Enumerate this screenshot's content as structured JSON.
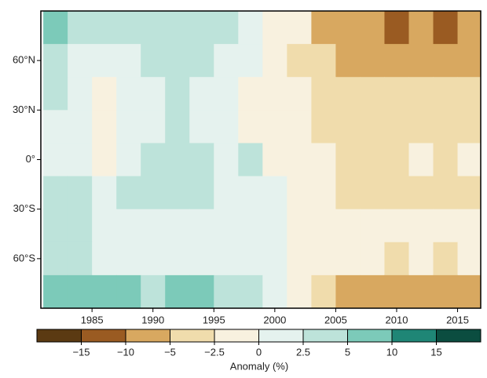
{
  "chart_data": {
    "type": "heatmap",
    "x": [
      1982,
      1984,
      1986,
      1988,
      1990,
      1992,
      1994,
      1996,
      1998,
      2000,
      2002,
      2004,
      2006,
      2008,
      2010,
      2012,
      2014,
      2016
    ],
    "y": [
      80,
      60,
      40,
      20,
      0,
      -20,
      -40,
      -60,
      -80
    ],
    "z": [
      [
        8,
        5,
        4,
        3,
        4,
        5,
        4,
        3,
        2,
        0,
        -2,
        -5,
        -8,
        -8,
        -10,
        -8,
        -10,
        -8
      ],
      [
        4,
        2,
        1,
        2,
        3,
        4,
        3,
        2,
        1,
        -1,
        -3,
        -4,
        -5,
        -5,
        -6,
        -5,
        -6,
        -5
      ],
      [
        3,
        1,
        0,
        1,
        2,
        3,
        2,
        1,
        0,
        -1,
        -2,
        -3,
        -4,
        -4,
        -4,
        -3,
        -4,
        -3
      ],
      [
        2,
        1,
        -1,
        1,
        2,
        3,
        2,
        1,
        0,
        -1,
        -2,
        -3,
        -3,
        -3,
        -3,
        -3,
        -3,
        -3
      ],
      [
        2,
        2,
        0,
        2,
        3,
        4,
        3,
        2,
        5,
        -1,
        -2,
        -2,
        -3,
        -3,
        -3,
        -2,
        -3,
        -2
      ],
      [
        3,
        3,
        2,
        3,
        3,
        4,
        3,
        2,
        2,
        1,
        -2,
        -2,
        -3,
        -3,
        -3,
        -3,
        -3,
        -3
      ],
      [
        3,
        3,
        2,
        2,
        2,
        2,
        2,
        2,
        2,
        1,
        -1,
        -2,
        -2,
        -2,
        -2,
        -2,
        -2,
        -2
      ],
      [
        4,
        3,
        2,
        2,
        2,
        2,
        2,
        2,
        2,
        1,
        0,
        -1,
        -2,
        -2,
        -3,
        -2,
        -3,
        -2
      ],
      [
        8,
        7,
        6,
        6,
        5,
        7,
        6,
        5,
        4,
        2,
        0,
        -3,
        -5,
        -6,
        -8,
        -8,
        -8,
        -6
      ]
    ],
    "xlim": [
      1980.8,
      2016.9
    ],
    "ylim": [
      -90,
      90
    ],
    "xticks": [
      1985,
      1990,
      1995,
      2000,
      2005,
      2010,
      2015
    ],
    "yticks": [
      {
        "value": 60,
        "label": "60°N"
      },
      {
        "value": 30,
        "label": "30°N"
      },
      {
        "value": 0,
        "label": "0°"
      },
      {
        "value": -30,
        "label": "30°S"
      },
      {
        "value": -60,
        "label": "60°S"
      }
    ],
    "colorbar": {
      "label": "Anomaly (%)",
      "ticks": [
        {
          "value": -15,
          "label": "−15"
        },
        {
          "value": -10,
          "label": "−10"
        },
        {
          "value": -5,
          "label": "−5"
        },
        {
          "value": -2.5,
          "label": "−2.5"
        },
        0,
        2.5,
        5,
        10,
        15
      ],
      "colors": [
        "#5b3a12",
        "#9a5b22",
        "#d8a860",
        "#f0dcac",
        "#f8f1df",
        "#e5f2ee",
        "#bde3da",
        "#7ccab9",
        "#1f8676",
        "#0b4d40"
      ]
    }
  }
}
